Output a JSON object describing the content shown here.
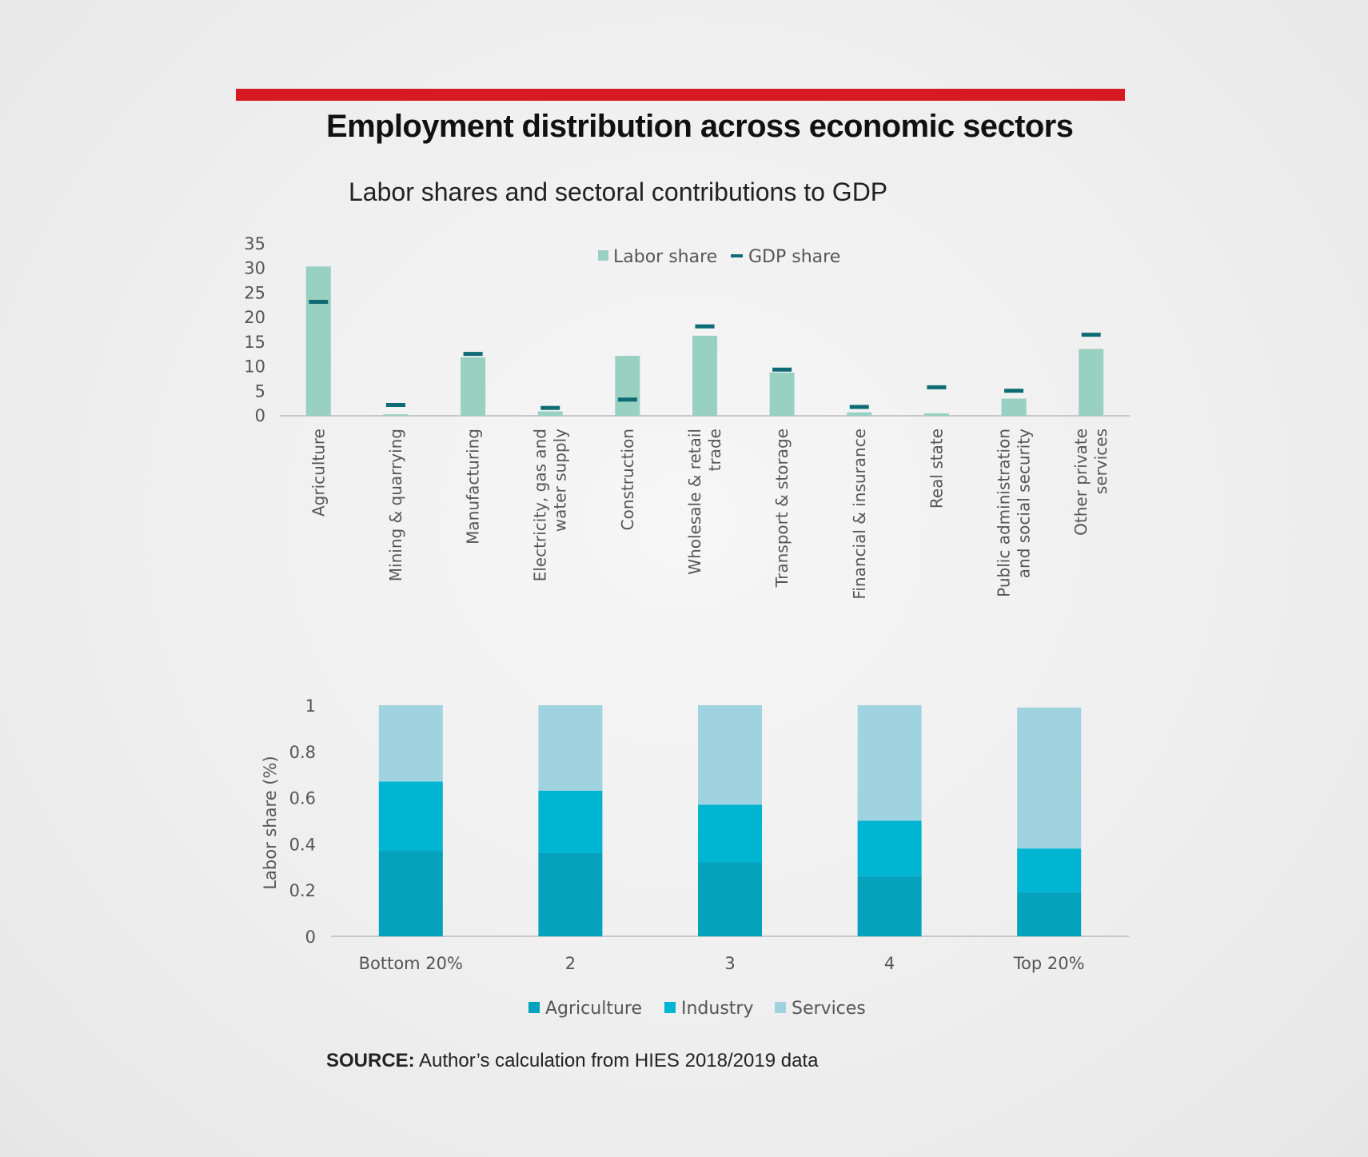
{
  "header": {
    "title": "Employment distribution across economic sectors",
    "subtitle": "Labor shares and sectoral contributions to GDP"
  },
  "source": {
    "label": "SOURCE:",
    "text": " Author’s calculation from HIES 2018/2019 data"
  },
  "colors": {
    "accent_bar": "#d71921",
    "labor_share": "#98d0c2",
    "gdp_share": "#0e6b73",
    "agriculture": "#04a2bd",
    "industry": "#00b5d1",
    "services": "#9ed3df",
    "axis": "#c8c8c8",
    "text": "#555555"
  },
  "chart_data": [
    {
      "type": "bar",
      "title": "",
      "xlabel": "",
      "ylabel": "",
      "ylim": [
        0,
        35
      ],
      "yticks": [
        0,
        5,
        10,
        15,
        20,
        25,
        30,
        35
      ],
      "legend_position": "top-center",
      "grid": false,
      "categories": [
        "Agriculture",
        "Mining & quarrying",
        "Manufacturing",
        "Electricity, gas and water supply",
        "Construction",
        "Wholesale & retail trade",
        "Transport & storage",
        "Financial & insurance",
        "Real state",
        "Public administration and social security",
        "Other private services"
      ],
      "category_label_lines": [
        [
          "Agriculture"
        ],
        [
          "Mining & quarrying"
        ],
        [
          "Manufacturing"
        ],
        [
          "Electricity, gas and",
          "water supply"
        ],
        [
          "Construction"
        ],
        [
          "Wholesale & retail",
          "trade"
        ],
        [
          "Transport & storage"
        ],
        [
          "Financial & insurance"
        ],
        [
          "Real state"
        ],
        [
          "Public administration",
          "and social security"
        ],
        [
          "Other private",
          "services"
        ]
      ],
      "series": [
        {
          "name": "Labor share",
          "mark": "bar",
          "values": [
            30.4,
            0.3,
            11.9,
            0.9,
            12.2,
            16.3,
            8.8,
            0.7,
            0.5,
            3.5,
            13.6
          ]
        },
        {
          "name": "GDP share",
          "mark": "dash",
          "values": [
            23.2,
            2.2,
            12.6,
            1.6,
            3.3,
            18.2,
            9.4,
            1.8,
            5.8,
            5.1,
            16.5
          ]
        }
      ]
    },
    {
      "type": "bar",
      "stacked": true,
      "title": "",
      "xlabel": "",
      "ylabel": "Labor share (%)",
      "ylim": [
        0,
        1
      ],
      "yticks": [
        "0",
        "0.2",
        "0.4",
        "0.6",
        "0.8",
        "1"
      ],
      "legend_position": "bottom-center",
      "grid": false,
      "categories": [
        "Bottom 20%",
        "2",
        "3",
        "4",
        "Top 20%"
      ],
      "series": [
        {
          "name": "Agriculture",
          "values": [
            0.37,
            0.36,
            0.32,
            0.26,
            0.19
          ]
        },
        {
          "name": "Industry",
          "values": [
            0.3,
            0.27,
            0.25,
            0.24,
            0.19
          ]
        },
        {
          "name": "Services",
          "values": [
            0.33,
            0.37,
            0.43,
            0.5,
            0.61
          ]
        }
      ]
    }
  ]
}
